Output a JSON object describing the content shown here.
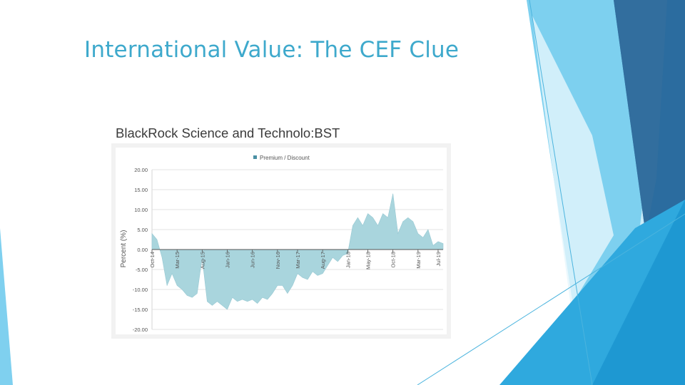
{
  "slide": {
    "title": "International Value: The CEF Clue",
    "colors": {
      "title": "#3ea9cc",
      "accent_light": "#9fdcf2",
      "accent_mid": "#2aa8dc",
      "accent_dark": "#2a6a9c"
    }
  },
  "chart_data": {
    "type": "area",
    "title": "BlackRock Science and Technolo:BST",
    "ylabel": "Percent (%)",
    "xlabel": "",
    "legend": {
      "position": "top-center",
      "entries": [
        "Premium / Discount"
      ]
    },
    "series_color": "#a9d5dd",
    "legend_marker_color": "#4a90a4",
    "grid": true,
    "ylim": [
      -20,
      20
    ],
    "yticks": [
      "20.00",
      "15.00",
      "10.00",
      "5.00",
      "0.00",
      "-5.00",
      "-10.00",
      "-15.00",
      "-20.00"
    ],
    "xlim": [
      "2014-10",
      "2019-08"
    ],
    "xtick_labels": [
      {
        "label": "Oct-14",
        "x": "2014-10"
      },
      {
        "label": "Mar-15",
        "x": "2015-03"
      },
      {
        "label": "Aug-15",
        "x": "2015-08"
      },
      {
        "label": "Jan-16",
        "x": "2016-01"
      },
      {
        "label": "Jun-16",
        "x": "2016-06"
      },
      {
        "label": "Nov-16",
        "x": "2016-11"
      },
      {
        "label": "Mar-17",
        "x": "2017-03"
      },
      {
        "label": "Aug-17",
        "x": "2017-08"
      },
      {
        "label": "Jan-18",
        "x": "2018-01"
      },
      {
        "label": "May-18",
        "x": "2018-05"
      },
      {
        "label": "Oct-18",
        "x": "2018-10"
      },
      {
        "label": "Mar-19",
        "x": "2019-03"
      },
      {
        "label": "Jul-19",
        "x": "2019-07"
      }
    ],
    "series": [
      {
        "name": "Premium / Discount",
        "points": [
          [
            "2014-10",
            4
          ],
          [
            "2014-11",
            2.5
          ],
          [
            "2014-12",
            -2
          ],
          [
            "2015-01",
            -9
          ],
          [
            "2015-02",
            -6
          ],
          [
            "2015-03",
            -9
          ],
          [
            "2015-04",
            -10
          ],
          [
            "2015-05",
            -11.5
          ],
          [
            "2015-06",
            -12
          ],
          [
            "2015-07",
            -11
          ],
          [
            "2015-08",
            -2
          ],
          [
            "2015-09",
            -13
          ],
          [
            "2015-10",
            -14
          ],
          [
            "2015-11",
            -13
          ],
          [
            "2015-12",
            -14
          ],
          [
            "2016-01",
            -15
          ],
          [
            "2016-02",
            -12
          ],
          [
            "2016-03",
            -13
          ],
          [
            "2016-04",
            -12.5
          ],
          [
            "2016-05",
            -13
          ],
          [
            "2016-06",
            -12.5
          ],
          [
            "2016-07",
            -13.5
          ],
          [
            "2016-08",
            -12
          ],
          [
            "2016-09",
            -12.5
          ],
          [
            "2016-10",
            -11
          ],
          [
            "2016-11",
            -9
          ],
          [
            "2016-12",
            -9
          ],
          [
            "2017-01",
            -11
          ],
          [
            "2017-02",
            -9
          ],
          [
            "2017-03",
            -6
          ],
          [
            "2017-04",
            -7
          ],
          [
            "2017-05",
            -7.5
          ],
          [
            "2017-06",
            -5.5
          ],
          [
            "2017-07",
            -6.5
          ],
          [
            "2017-08",
            -6
          ],
          [
            "2017-09",
            -4
          ],
          [
            "2017-10",
            -2
          ],
          [
            "2017-11",
            -3
          ],
          [
            "2017-12",
            -1.5
          ],
          [
            "2018-01",
            -1
          ],
          [
            "2018-02",
            6
          ],
          [
            "2018-03",
            8
          ],
          [
            "2018-04",
            6
          ],
          [
            "2018-05",
            9
          ],
          [
            "2018-06",
            8
          ],
          [
            "2018-07",
            6
          ],
          [
            "2018-08",
            9
          ],
          [
            "2018-09",
            8
          ],
          [
            "2018-10",
            14
          ],
          [
            "2018-11",
            4
          ],
          [
            "2018-12",
            7
          ],
          [
            "2019-01",
            8
          ],
          [
            "2019-02",
            7
          ],
          [
            "2019-03",
            4
          ],
          [
            "2019-04",
            3
          ],
          [
            "2019-05",
            5
          ],
          [
            "2019-06",
            1
          ],
          [
            "2019-07",
            2
          ],
          [
            "2019-08",
            1.5
          ]
        ]
      }
    ]
  }
}
